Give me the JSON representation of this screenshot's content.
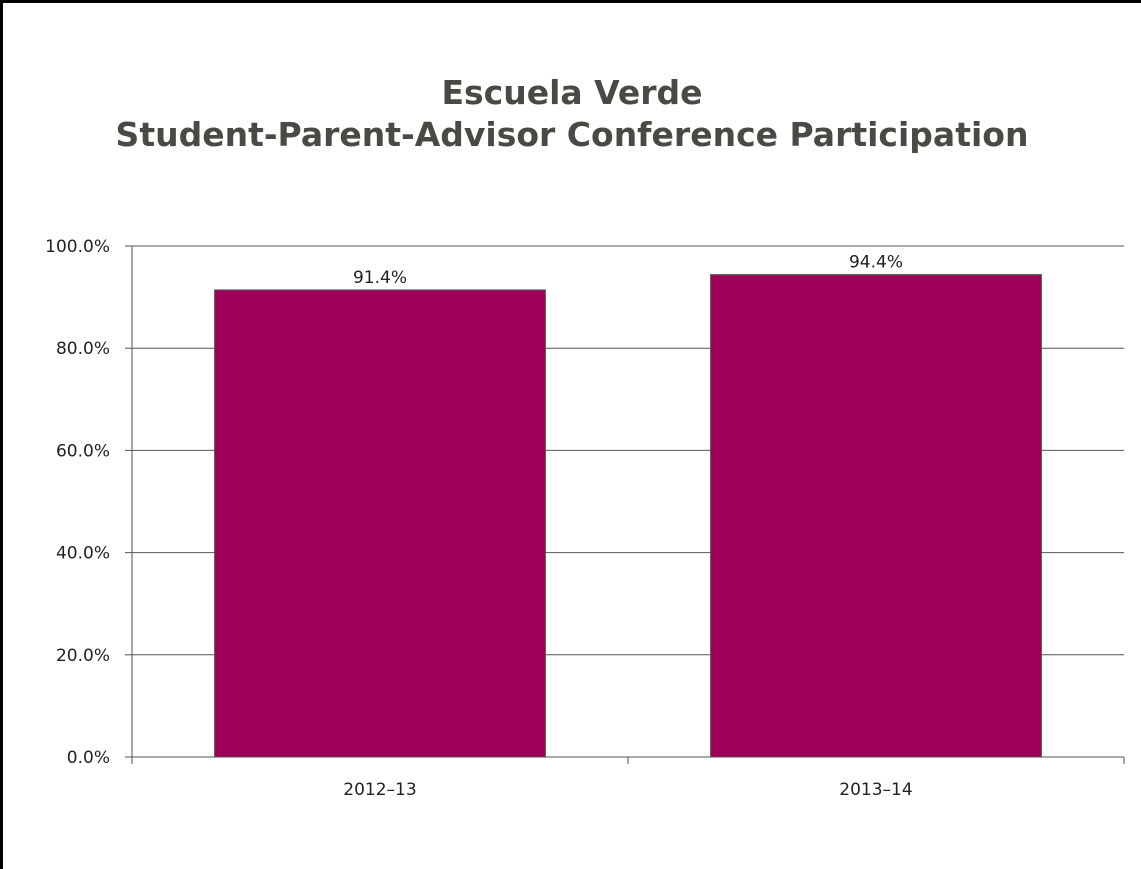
{
  "chart_data": {
    "type": "bar",
    "title_lines": [
      "Escuela Verde",
      "Student-Parent-Advisor Conference Participation"
    ],
    "categories": [
      "2012–13",
      "2013–14"
    ],
    "values": [
      91.4,
      94.4
    ],
    "value_labels": [
      "91.4%",
      "94.4%"
    ],
    "ylim": [
      0,
      100
    ],
    "yticks": [
      0,
      20,
      40,
      60,
      80,
      100
    ],
    "ytick_labels": [
      "0.0%",
      "20.0%",
      "40.0%",
      "60.0%",
      "80.0%",
      "100.0%"
    ],
    "xlabel": "",
    "ylabel": "",
    "grid": true,
    "legend": false,
    "bar_color": "#9e0057",
    "bar_edge_color": "#555555",
    "gridline_color": "#555555"
  }
}
